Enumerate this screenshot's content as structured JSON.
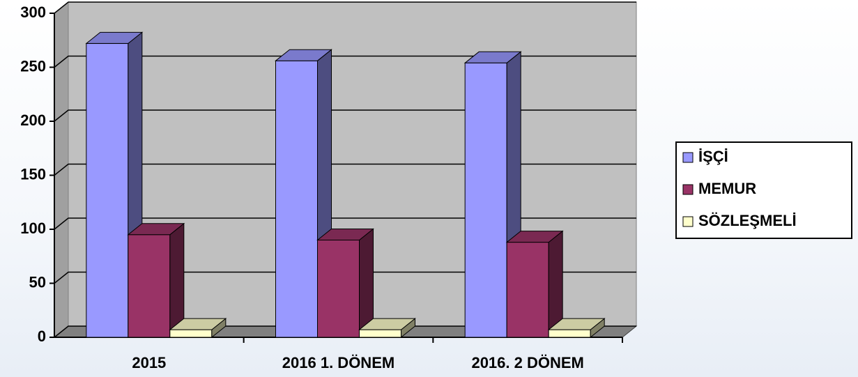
{
  "chart_data": {
    "type": "bar",
    "categories": [
      "2015",
      "2016 1. DÖNEM",
      "2016. 2 DÖNEM"
    ],
    "series": [
      {
        "name": "İŞÇİ",
        "color": "#9999ff",
        "values": [
          272,
          256,
          254
        ]
      },
      {
        "name": "MEMUR",
        "color": "#993366",
        "values": [
          95,
          90,
          88
        ]
      },
      {
        "name": "SÖZLEŞMELİ",
        "color": "#ffffcc",
        "values": [
          7,
          7,
          7
        ]
      }
    ],
    "ylim": [
      0,
      300
    ],
    "yticks": [
      0,
      50,
      100,
      150,
      200,
      250,
      300
    ],
    "grid": true,
    "legend": "right"
  }
}
